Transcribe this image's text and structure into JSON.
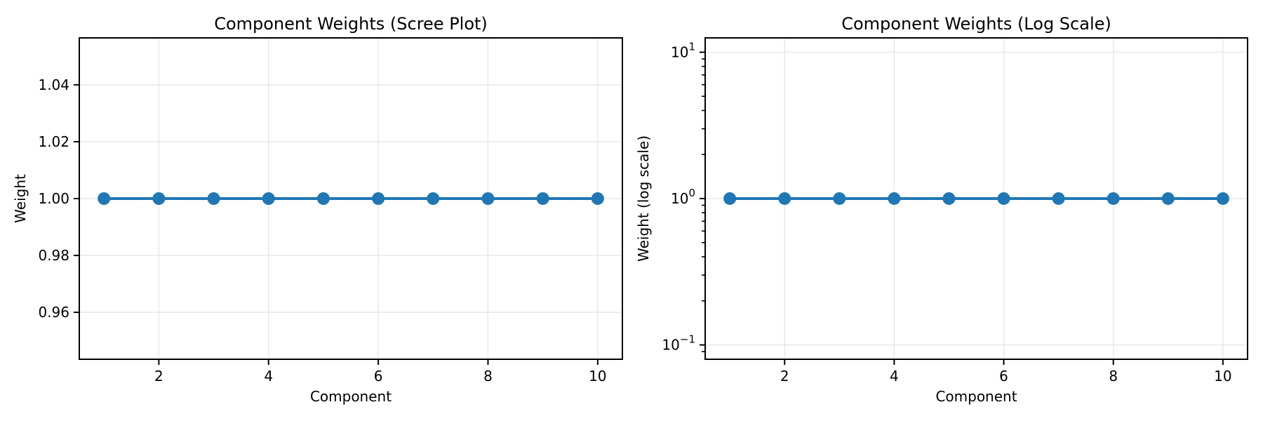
{
  "figure": {
    "background": "#ffffff",
    "text_color": "#000000",
    "spine_color": "#000000",
    "grid_color": "#e7e7e7",
    "accent_color": "#1f77b4"
  },
  "chart_data": [
    {
      "type": "line",
      "title": "Component Weights (Scree Plot)",
      "xlabel": "Component",
      "ylabel": "Weight",
      "yscale": "linear",
      "x": [
        1,
        2,
        3,
        4,
        5,
        6,
        7,
        8,
        9,
        10
      ],
      "y": [
        1.0,
        1.0,
        1.0,
        1.0,
        1.0,
        1.0,
        1.0,
        1.0,
        1.0,
        1.0
      ],
      "xlim": [
        0.55,
        10.45
      ],
      "ylim": [
        0.9435,
        1.0565
      ],
      "xticks": [
        2,
        4,
        6,
        8,
        10
      ],
      "xtick_labels": [
        "2",
        "4",
        "6",
        "8",
        "10"
      ],
      "yticks": [
        0.96,
        0.98,
        1.0,
        1.02,
        1.04
      ],
      "ytick_labels": [
        "0.96",
        "0.98",
        "1.00",
        "1.02",
        "1.04"
      ],
      "minor_yticks": [],
      "grid": true,
      "legend": null,
      "series_color": "#1f77b4",
      "marker": "circle",
      "line_width": 4,
      "marker_size": 9
    },
    {
      "type": "line",
      "title": "Component Weights (Log Scale)",
      "xlabel": "Component",
      "ylabel": "Weight (log scale)",
      "yscale": "log",
      "x": [
        1,
        2,
        3,
        4,
        5,
        6,
        7,
        8,
        9,
        10
      ],
      "y": [
        1.0,
        1.0,
        1.0,
        1.0,
        1.0,
        1.0,
        1.0,
        1.0,
        1.0,
        1.0
      ],
      "xlim": [
        0.55,
        10.45
      ],
      "ylim": [
        0.0798,
        12.53
      ],
      "xticks": [
        2,
        4,
        6,
        8,
        10
      ],
      "xtick_labels": [
        "2",
        "4",
        "6",
        "8",
        "10"
      ],
      "yticks": [
        10,
        1,
        0.1
      ],
      "ytick_labels": [
        {
          "base": "10",
          "exp": "1"
        },
        {
          "base": "10",
          "exp": "0"
        },
        {
          "base": "10",
          "exp": "−1"
        }
      ],
      "minor_yticks": [
        0.09,
        0.2,
        0.3,
        0.4,
        0.5,
        0.6,
        0.7,
        0.8,
        0.9,
        2,
        3,
        4,
        5,
        6,
        7,
        8,
        9
      ],
      "grid": true,
      "legend": null,
      "series_color": "#1f77b4",
      "marker": "circle",
      "line_width": 4,
      "marker_size": 9
    }
  ]
}
